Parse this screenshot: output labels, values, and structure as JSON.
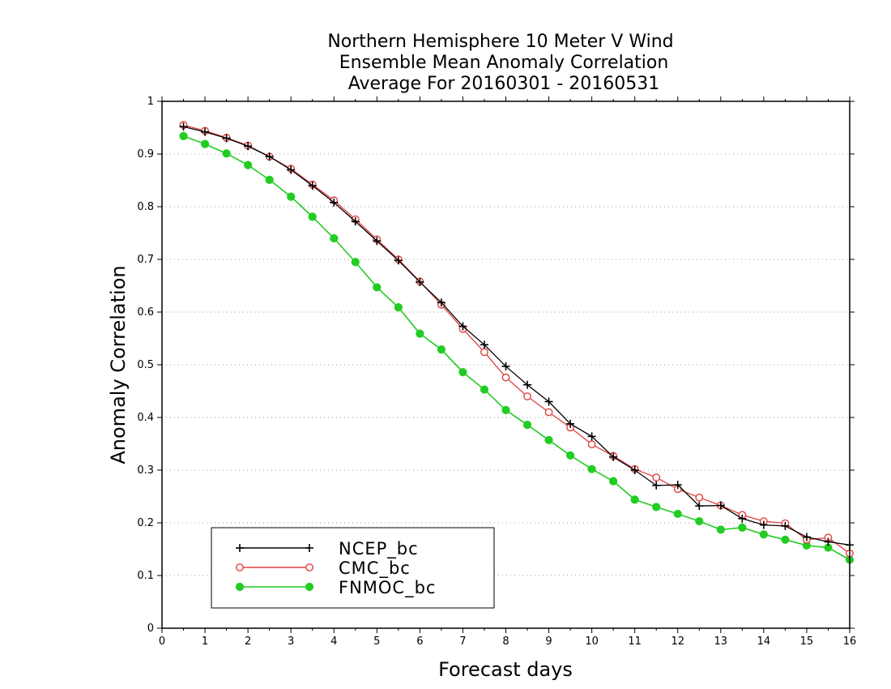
{
  "chart_data": {
    "type": "line",
    "title": [
      "Northern Hemisphere 10 Meter V Wind",
      "Ensemble Mean Anomaly Correlation",
      "Average For 20160301 - 20160531"
    ],
    "xlabel": "Forecast days",
    "ylabel": "Anomaly Correlation",
    "xlim": [
      0,
      16
    ],
    "ylim": [
      0,
      1
    ],
    "x_ticks": [
      "0",
      "1",
      "2",
      "3",
      "4",
      "5",
      "6",
      "7",
      "8",
      "9",
      "10",
      "11",
      "12",
      "13",
      "14",
      "15",
      "16"
    ],
    "y_ticks": [
      "0",
      "0.1",
      "0.2",
      "0.3",
      "0.4",
      "0.5",
      "0.6",
      "0.7",
      "0.8",
      "0.9",
      "1"
    ],
    "grid": "horizontal dotted",
    "legend_position": "bottom-left",
    "x": [
      0.5,
      1,
      1.5,
      2,
      2.5,
      3,
      3.5,
      4,
      4.5,
      5,
      5.5,
      6,
      6.5,
      7,
      7.5,
      8,
      8.5,
      9,
      9.5,
      10,
      10.5,
      11,
      11.5,
      12,
      12.5,
      13,
      13.5,
      14,
      14.5,
      15,
      15.5,
      16
    ],
    "series": [
      {
        "name": "NCEP_bc",
        "color": "#000000",
        "marker": "plus",
        "values": [
          0.952,
          0.942,
          0.93,
          0.915,
          0.895,
          0.87,
          0.84,
          0.808,
          0.772,
          0.735,
          0.698,
          0.657,
          0.618,
          0.573,
          0.538,
          0.497,
          0.462,
          0.43,
          0.388,
          0.364,
          0.325,
          0.3,
          0.271,
          0.272,
          0.232,
          0.233,
          0.208,
          0.196,
          0.194,
          0.173,
          0.164,
          0.158
        ]
      },
      {
        "name": "CMC_bc",
        "color": "#e04040",
        "marker": "open-circle",
        "values": [
          0.955,
          0.944,
          0.931,
          0.916,
          0.895,
          0.872,
          0.842,
          0.812,
          0.776,
          0.738,
          0.7,
          0.658,
          0.614,
          0.568,
          0.524,
          0.476,
          0.44,
          0.41,
          0.381,
          0.349,
          0.327,
          0.302,
          0.286,
          0.264,
          0.248,
          0.233,
          0.215,
          0.203,
          0.199,
          0.168,
          0.172,
          0.142
        ]
      },
      {
        "name": "FNMOC_bc",
        "color": "#22cc22",
        "marker": "filled-circle",
        "values": [
          0.934,
          0.919,
          0.901,
          0.879,
          0.851,
          0.819,
          0.781,
          0.74,
          0.695,
          0.647,
          0.609,
          0.559,
          0.529,
          0.486,
          0.453,
          0.414,
          0.386,
          0.357,
          0.328,
          0.302,
          0.279,
          0.244,
          0.23,
          0.217,
          0.203,
          0.187,
          0.191,
          0.178,
          0.168,
          0.157,
          0.153,
          0.13
        ]
      }
    ]
  }
}
